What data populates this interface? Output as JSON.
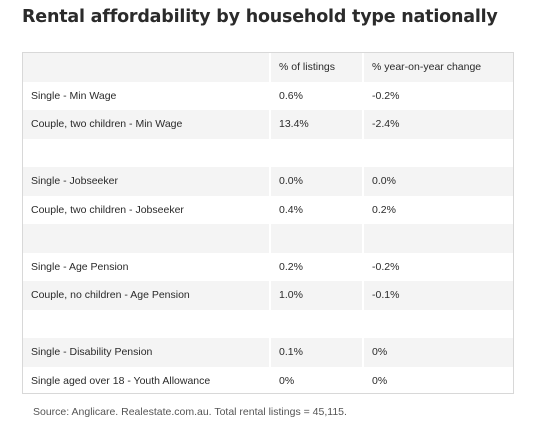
{
  "title": "Rental affordability by household type nationally",
  "table": {
    "headers": [
      "",
      "% of listings",
      "% year-on-year change"
    ],
    "rows": [
      [
        "Single - Min Wage",
        "0.6%",
        "-0.2%"
      ],
      [
        "Couple, two children - Min Wage",
        "13.4%",
        "-2.4%"
      ],
      [
        "",
        "",
        ""
      ],
      [
        "Single - Jobseeker",
        "0.0%",
        "0.0%"
      ],
      [
        "Couple, two children - Jobseeker",
        "0.4%",
        "0.2%"
      ],
      [
        "",
        "",
        ""
      ],
      [
        "Single - Age Pension",
        "0.2%",
        "-0.2%"
      ],
      [
        "Couple, no children - Age Pension",
        "1.0%",
        "-0.1%"
      ],
      [
        "",
        "",
        ""
      ],
      [
        "Single - Disability Pension",
        "0.1%",
        "0%"
      ],
      [
        "Single aged over 18 - Youth Allowance",
        "0%",
        "0%"
      ]
    ]
  },
  "source": "Source: Anglicare. Realestate.com.au. Total rental listings = 45,115."
}
